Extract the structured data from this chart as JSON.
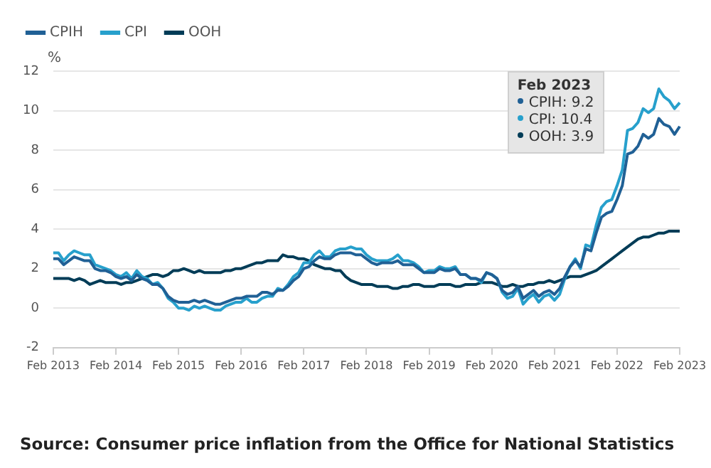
{
  "chart_data": {
    "type": "line",
    "ylabel": "%",
    "legend": "top",
    "grid": "y",
    "line_style": "solid",
    "marker": "none",
    "categories": [
      "Feb 2013",
      null,
      null,
      null,
      null,
      null,
      null,
      null,
      null,
      null,
      null,
      null,
      "Feb 2014",
      null,
      null,
      null,
      null,
      null,
      null,
      null,
      null,
      null,
      null,
      null,
      "Feb 2015",
      null,
      null,
      null,
      null,
      null,
      null,
      null,
      null,
      null,
      null,
      null,
      "Feb 2016",
      null,
      null,
      null,
      null,
      null,
      null,
      null,
      null,
      null,
      null,
      null,
      "Feb 2017",
      null,
      null,
      null,
      null,
      null,
      null,
      null,
      null,
      null,
      null,
      null,
      "Feb 2018",
      null,
      null,
      null,
      null,
      null,
      null,
      null,
      null,
      null,
      null,
      null,
      "Feb 2019",
      null,
      null,
      null,
      null,
      null,
      null,
      null,
      null,
      null,
      null,
      null,
      "Feb 2020",
      null,
      null,
      null,
      null,
      null,
      null,
      null,
      null,
      null,
      null,
      null,
      "Feb 2021",
      null,
      null,
      null,
      null,
      null,
      null,
      null,
      null,
      null,
      null,
      null,
      "Feb 2022",
      null,
      null,
      null,
      null,
      null,
      null,
      null,
      null,
      null,
      null,
      null,
      "Feb 2023"
    ],
    "ylim": [
      -2,
      12
    ],
    "yticks": [
      -2,
      0,
      2,
      4,
      6,
      8,
      10,
      12
    ],
    "series": [
      {
        "name": "CPIH",
        "color": "#206095",
        "values": [
          2.5,
          2.5,
          2.2,
          2.4,
          2.6,
          2.5,
          2.4,
          2.4,
          2.0,
          1.9,
          1.9,
          1.8,
          1.6,
          1.5,
          1.6,
          1.4,
          1.7,
          1.5,
          1.4,
          1.2,
          1.2,
          1.0,
          0.6,
          0.4,
          0.3,
          0.3,
          0.3,
          0.4,
          0.3,
          0.4,
          0.3,
          0.2,
          0.2,
          0.3,
          0.4,
          0.5,
          0.5,
          0.6,
          0.6,
          0.6,
          0.8,
          0.8,
          0.7,
          0.9,
          0.9,
          1.1,
          1.4,
          1.6,
          2.0,
          2.1,
          2.4,
          2.6,
          2.5,
          2.5,
          2.7,
          2.8,
          2.8,
          2.8,
          2.7,
          2.7,
          2.5,
          2.3,
          2.2,
          2.3,
          2.3,
          2.3,
          2.4,
          2.2,
          2.2,
          2.2,
          2.0,
          1.8,
          1.8,
          1.8,
          2.0,
          1.9,
          1.9,
          2.0,
          1.7,
          1.7,
          1.5,
          1.5,
          1.4,
          1.8,
          1.7,
          1.5,
          0.9,
          0.7,
          0.8,
          1.1,
          0.5,
          0.7,
          0.9,
          0.6,
          0.8,
          0.9,
          0.7,
          1.0,
          1.6,
          2.1,
          2.4,
          2.1,
          3.0,
          2.9,
          3.8,
          4.6,
          4.8,
          4.9,
          5.5,
          6.2,
          7.8,
          7.9,
          8.2,
          8.8,
          8.6,
          8.8,
          9.6,
          9.3,
          9.2,
          8.8,
          9.2
        ]
      },
      {
        "name": "CPI",
        "color": "#27a0cc",
        "values": [
          2.8,
          2.8,
          2.4,
          2.7,
          2.9,
          2.8,
          2.7,
          2.7,
          2.2,
          2.1,
          2.0,
          1.9,
          1.7,
          1.6,
          1.8,
          1.5,
          1.9,
          1.6,
          1.5,
          1.2,
          1.3,
          1.0,
          0.5,
          0.3,
          0.0,
          0.0,
          -0.1,
          0.1,
          0.0,
          0.1,
          0.0,
          -0.1,
          -0.1,
          0.1,
          0.2,
          0.3,
          0.3,
          0.5,
          0.3,
          0.3,
          0.5,
          0.6,
          0.6,
          1.0,
          0.9,
          1.2,
          1.6,
          1.8,
          2.3,
          2.3,
          2.7,
          2.9,
          2.6,
          2.6,
          2.9,
          3.0,
          3.0,
          3.1,
          3.0,
          3.0,
          2.7,
          2.5,
          2.4,
          2.4,
          2.4,
          2.5,
          2.7,
          2.4,
          2.4,
          2.3,
          2.1,
          1.8,
          1.9,
          1.9,
          2.1,
          2.0,
          2.0,
          2.1,
          1.7,
          1.7,
          1.5,
          1.5,
          1.3,
          1.8,
          1.7,
          1.5,
          0.8,
          0.5,
          0.6,
          1.0,
          0.2,
          0.5,
          0.7,
          0.3,
          0.6,
          0.7,
          0.4,
          0.7,
          1.5,
          2.1,
          2.5,
          2.0,
          3.2,
          3.1,
          4.2,
          5.1,
          5.4,
          5.5,
          6.2,
          7.0,
          9.0,
          9.1,
          9.4,
          10.1,
          9.9,
          10.1,
          11.1,
          10.7,
          10.5,
          10.1,
          10.4
        ]
      },
      {
        "name": "OOH",
        "color": "#003c57",
        "values": [
          1.5,
          1.5,
          1.5,
          1.5,
          1.4,
          1.5,
          1.4,
          1.2,
          1.3,
          1.4,
          1.3,
          1.3,
          1.3,
          1.2,
          1.3,
          1.3,
          1.4,
          1.5,
          1.6,
          1.7,
          1.7,
          1.6,
          1.7,
          1.9,
          1.9,
          2.0,
          1.9,
          1.8,
          1.9,
          1.8,
          1.8,
          1.8,
          1.8,
          1.9,
          1.9,
          2.0,
          2.0,
          2.1,
          2.2,
          2.3,
          2.3,
          2.4,
          2.4,
          2.4,
          2.7,
          2.6,
          2.6,
          2.5,
          2.5,
          2.4,
          2.2,
          2.1,
          2.0,
          2.0,
          1.9,
          1.9,
          1.6,
          1.4,
          1.3,
          1.2,
          1.2,
          1.2,
          1.1,
          1.1,
          1.1,
          1.0,
          1.0,
          1.1,
          1.1,
          1.2,
          1.2,
          1.1,
          1.1,
          1.1,
          1.2,
          1.2,
          1.2,
          1.1,
          1.1,
          1.2,
          1.2,
          1.2,
          1.3,
          1.3,
          1.3,
          1.2,
          1.1,
          1.1,
          1.2,
          1.1,
          1.1,
          1.2,
          1.2,
          1.3,
          1.3,
          1.4,
          1.3,
          1.4,
          1.5,
          1.6,
          1.6,
          1.6,
          1.7,
          1.8,
          1.9,
          2.1,
          2.3,
          2.5,
          2.7,
          2.9,
          3.1,
          3.3,
          3.5,
          3.6,
          3.6,
          3.7,
          3.8,
          3.8,
          3.9,
          3.9,
          3.9
        ]
      }
    ],
    "annotations": [
      "Feb 2023",
      "CPIH: 9.2",
      "CPI: 10.4",
      "OOH: 3.9",
      "Source: Consumer price inflation from the Office for National Statistics"
    ]
  }
}
